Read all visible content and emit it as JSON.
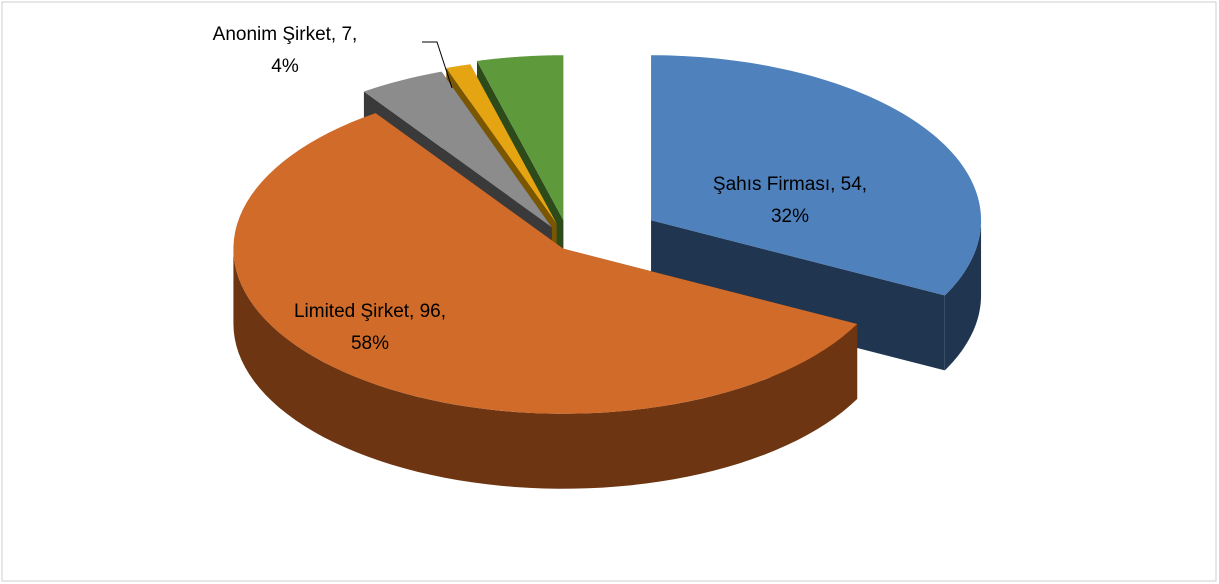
{
  "chart_data": {
    "type": "pie3d",
    "values": [
      54,
      96,
      7,
      2,
      7
    ],
    "value_labels": [
      [
        "Şahıs Firması, 54,",
        "32%"
      ],
      [
        "Limited Şirket, 96,",
        "58%"
      ],
      [
        "Anonim Şirket, 7,",
        "4%"
      ],
      null,
      null
    ],
    "colors": [
      "#4f81bd",
      "#d06b29",
      "#8c8c8c",
      "#e5a513",
      "#5e9a3c"
    ],
    "side_colors": [
      "#1f3550",
      "#6e3512",
      "#3a3a3a",
      "#7a5600",
      "#2c4a1a"
    ]
  }
}
